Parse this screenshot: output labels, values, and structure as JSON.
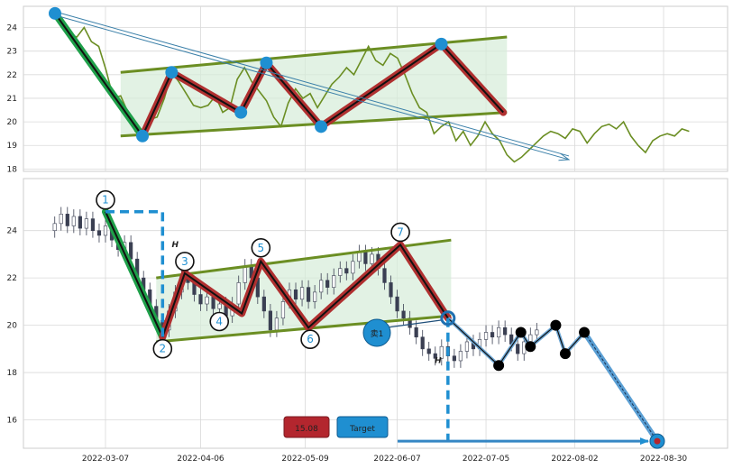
{
  "chart_data": [
    {
      "panel": "top",
      "type": "line",
      "title": "",
      "xlabel": "",
      "ylabel": "",
      "ylim": [
        17.9,
        24.9
      ],
      "grid": true,
      "yticks": [
        18,
        19,
        20,
        21,
        22,
        23,
        24
      ],
      "colors": {
        "price": "#6b8e23",
        "pattern": "#b03030",
        "point": "#1f8fd1",
        "channel": "#6b8e23",
        "leg": "#1fa04a"
      },
      "price_series": [
        {
          "x": 0,
          "y": 24.6
        },
        {
          "x": 2,
          "y": 24.0
        },
        {
          "x": 4,
          "y": 23.7
        },
        {
          "x": 6,
          "y": 23.6
        },
        {
          "x": 8,
          "y": 24.0
        },
        {
          "x": 10,
          "y": 23.4
        },
        {
          "x": 12,
          "y": 23.2
        },
        {
          "x": 14,
          "y": 22.2
        },
        {
          "x": 16,
          "y": 21.0
        },
        {
          "x": 18,
          "y": 21.1
        },
        {
          "x": 20,
          "y": 20.4
        },
        {
          "x": 22,
          "y": 19.6
        },
        {
          "x": 24,
          "y": 19.4
        },
        {
          "x": 26,
          "y": 20.1
        },
        {
          "x": 28,
          "y": 20.2
        },
        {
          "x": 30,
          "y": 21.0
        },
        {
          "x": 32,
          "y": 22.1
        },
        {
          "x": 34,
          "y": 21.7
        },
        {
          "x": 36,
          "y": 21.2
        },
        {
          "x": 38,
          "y": 20.7
        },
        {
          "x": 40,
          "y": 20.6
        },
        {
          "x": 42,
          "y": 20.7
        },
        {
          "x": 44,
          "y": 21.1
        },
        {
          "x": 46,
          "y": 20.4
        },
        {
          "x": 48,
          "y": 20.6
        },
        {
          "x": 50,
          "y": 21.8
        },
        {
          "x": 52,
          "y": 22.3
        },
        {
          "x": 54,
          "y": 21.7
        },
        {
          "x": 56,
          "y": 21.3
        },
        {
          "x": 58,
          "y": 20.9
        },
        {
          "x": 60,
          "y": 20.2
        },
        {
          "x": 62,
          "y": 19.8
        },
        {
          "x": 64,
          "y": 20.8
        },
        {
          "x": 66,
          "y": 21.4
        },
        {
          "x": 68,
          "y": 21.0
        },
        {
          "x": 70,
          "y": 21.2
        },
        {
          "x": 72,
          "y": 20.6
        },
        {
          "x": 74,
          "y": 21.1
        },
        {
          "x": 76,
          "y": 21.6
        },
        {
          "x": 78,
          "y": 21.9
        },
        {
          "x": 80,
          "y": 22.3
        },
        {
          "x": 82,
          "y": 22.0
        },
        {
          "x": 84,
          "y": 22.6
        },
        {
          "x": 86,
          "y": 23.2
        },
        {
          "x": 88,
          "y": 22.6
        },
        {
          "x": 90,
          "y": 22.4
        },
        {
          "x": 92,
          "y": 22.9
        },
        {
          "x": 94,
          "y": 22.7
        },
        {
          "x": 96,
          "y": 22.0
        },
        {
          "x": 98,
          "y": 21.2
        },
        {
          "x": 100,
          "y": 20.6
        },
        {
          "x": 102,
          "y": 20.4
        },
        {
          "x": 104,
          "y": 19.5
        },
        {
          "x": 106,
          "y": 19.8
        },
        {
          "x": 108,
          "y": 20.0
        },
        {
          "x": 110,
          "y": 19.2
        },
        {
          "x": 112,
          "y": 19.6
        },
        {
          "x": 114,
          "y": 19.0
        },
        {
          "x": 116,
          "y": 19.4
        },
        {
          "x": 118,
          "y": 20.0
        },
        {
          "x": 120,
          "y": 19.5
        },
        {
          "x": 122,
          "y": 19.2
        },
        {
          "x": 124,
          "y": 18.6
        },
        {
          "x": 126,
          "y": 18.3
        },
        {
          "x": 128,
          "y": 18.5
        },
        {
          "x": 130,
          "y": 18.8
        },
        {
          "x": 132,
          "y": 19.1
        },
        {
          "x": 134,
          "y": 19.4
        },
        {
          "x": 136,
          "y": 19.6
        },
        {
          "x": 138,
          "y": 19.5
        },
        {
          "x": 140,
          "y": 19.3
        },
        {
          "x": 142,
          "y": 19.7
        },
        {
          "x": 144,
          "y": 19.6
        },
        {
          "x": 146,
          "y": 19.1
        },
        {
          "x": 148,
          "y": 19.5
        },
        {
          "x": 150,
          "y": 19.8
        },
        {
          "x": 152,
          "y": 19.9
        },
        {
          "x": 154,
          "y": 19.7
        },
        {
          "x": 156,
          "y": 20.0
        },
        {
          "x": 158,
          "y": 19.4
        },
        {
          "x": 160,
          "y": 19.0
        },
        {
          "x": 162,
          "y": 18.7
        },
        {
          "x": 164,
          "y": 19.2
        },
        {
          "x": 166,
          "y": 19.4
        },
        {
          "x": 168,
          "y": 19.5
        },
        {
          "x": 170,
          "y": 19.4
        },
        {
          "x": 172,
          "y": 19.7
        },
        {
          "x": 174,
          "y": 19.6
        }
      ],
      "pattern_points": [
        {
          "x": 0,
          "y": 24.6
        },
        {
          "x": 24,
          "y": 19.4
        },
        {
          "x": 32,
          "y": 22.1
        },
        {
          "x": 51,
          "y": 20.4
        },
        {
          "x": 58,
          "y": 22.5
        },
        {
          "x": 73,
          "y": 19.8
        },
        {
          "x": 106,
          "y": 23.3
        },
        {
          "x": 123,
          "y": 20.4
        }
      ],
      "channel_upper": [
        {
          "x": 18,
          "y": 22.1
        },
        {
          "x": 124,
          "y": 23.6
        }
      ],
      "channel_lower": [
        {
          "x": 18,
          "y": 19.4
        },
        {
          "x": 124,
          "y": 20.4
        }
      ],
      "trend_arrow": [
        {
          "x": 0,
          "y": 24.6
        },
        {
          "x": 141,
          "y": 18.4
        }
      ]
    },
    {
      "panel": "bottom",
      "type": "candlestick",
      "title": "",
      "xlabel": "",
      "ylabel": "",
      "ylim": [
        14.8,
        26.2
      ],
      "grid": true,
      "yticks": [
        16,
        18,
        20,
        22,
        24
      ],
      "x_ticks": [
        {
          "day": 0,
          "label": "2022-03-07"
        },
        {
          "day": 30,
          "label": "2022-04-06"
        },
        {
          "day": 63,
          "label": "2022-05-09"
        },
        {
          "day": 92,
          "label": "2022-06-07"
        },
        {
          "day": 120,
          "label": "2022-07-05"
        },
        {
          "day": 148,
          "label": "2022-08-02"
        },
        {
          "day": 176,
          "label": "2022-08-30"
        }
      ],
      "colors": {
        "candle": "#3a3f52",
        "pattern": "#b03030",
        "channel": "#6b8e23",
        "leg": "#1fa04a",
        "target": "#1f8fd1",
        "price_badge": "#b3262e",
        "forecast": "#111111"
      },
      "candles": [
        [
          -16,
          24.0,
          24.3
        ],
        [
          -14,
          24.3,
          24.7
        ],
        [
          -12,
          24.7,
          24.2
        ],
        [
          -10,
          24.2,
          24.6
        ],
        [
          -8,
          24.6,
          24.1
        ],
        [
          -6,
          24.1,
          24.5
        ],
        [
          -4,
          24.5,
          24.0
        ],
        [
          -2,
          24.0,
          23.8
        ],
        [
          0,
          23.8,
          24.2
        ],
        [
          2,
          24.2,
          23.6
        ],
        [
          4,
          23.6,
          23.2
        ],
        [
          6,
          23.2,
          23.5
        ],
        [
          8,
          23.5,
          22.8
        ],
        [
          10,
          22.8,
          22.0
        ],
        [
          12,
          22.0,
          21.5
        ],
        [
          14,
          21.5,
          20.8
        ],
        [
          16,
          20.8,
          20.2
        ],
        [
          18,
          20.2,
          19.8
        ],
        [
          20,
          19.8,
          20.6
        ],
        [
          22,
          20.6,
          21.4
        ],
        [
          24,
          21.4,
          22.1
        ],
        [
          26,
          22.1,
          21.8
        ],
        [
          28,
          21.8,
          21.3
        ],
        [
          30,
          21.3,
          20.9
        ],
        [
          32,
          20.9,
          21.2
        ],
        [
          34,
          21.2,
          20.7
        ],
        [
          36,
          20.7,
          20.9
        ],
        [
          38,
          20.9,
          20.4
        ],
        [
          40,
          20.4,
          20.9
        ],
        [
          42,
          20.9,
          21.8
        ],
        [
          44,
          21.8,
          22.5
        ],
        [
          46,
          22.5,
          22.0
        ],
        [
          48,
          22.0,
          21.2
        ],
        [
          50,
          21.2,
          20.6
        ],
        [
          52,
          20.6,
          19.8
        ],
        [
          54,
          19.8,
          20.3
        ],
        [
          56,
          20.3,
          21.0
        ],
        [
          58,
          21.0,
          21.5
        ],
        [
          60,
          21.5,
          21.1
        ],
        [
          62,
          21.1,
          21.6
        ],
        [
          64,
          21.6,
          21.0
        ],
        [
          66,
          21.0,
          21.4
        ],
        [
          68,
          21.4,
          21.9
        ],
        [
          70,
          21.9,
          21.6
        ],
        [
          72,
          21.6,
          22.1
        ],
        [
          74,
          22.1,
          22.4
        ],
        [
          76,
          22.4,
          22.2
        ],
        [
          78,
          22.2,
          22.7
        ],
        [
          80,
          22.7,
          23.1
        ],
        [
          82,
          23.1,
          22.6
        ],
        [
          84,
          22.6,
          23.0
        ],
        [
          86,
          23.0,
          22.4
        ],
        [
          88,
          22.4,
          21.8
        ],
        [
          90,
          21.8,
          21.2
        ],
        [
          92,
          21.2,
          20.6
        ],
        [
          94,
          20.6,
          20.3
        ],
        [
          96,
          20.3,
          19.9
        ],
        [
          98,
          19.9,
          19.5
        ],
        [
          100,
          19.5,
          19.0
        ],
        [
          102,
          19.0,
          18.8
        ],
        [
          104,
          18.8,
          18.6
        ],
        [
          106,
          18.6,
          19.1
        ],
        [
          108,
          19.1,
          18.7
        ],
        [
          110,
          18.7,
          18.5
        ],
        [
          112,
          18.5,
          18.9
        ],
        [
          114,
          18.9,
          19.3
        ],
        [
          116,
          19.3,
          19.0
        ],
        [
          118,
          19.0,
          19.4
        ],
        [
          120,
          19.4,
          19.7
        ],
        [
          122,
          19.7,
          19.5
        ],
        [
          124,
          19.5,
          19.9
        ],
        [
          126,
          19.9,
          19.6
        ],
        [
          128,
          19.6,
          19.2
        ],
        [
          130,
          19.2,
          18.8
        ],
        [
          132,
          18.8,
          19.3
        ],
        [
          134,
          19.3,
          19.6
        ],
        [
          136,
          19.6,
          19.8
        ]
      ],
      "pattern_points": [
        {
          "label": "1",
          "x": 0,
          "y": 24.8
        },
        {
          "label": "2",
          "x": 18,
          "y": 19.5
        },
        {
          "label": "3",
          "x": 25,
          "y": 22.2
        },
        {
          "label": "4",
          "x": 43,
          "y": 20.5
        },
        {
          "label": "5",
          "x": 49,
          "y": 22.7
        },
        {
          "label": "6",
          "x": 64,
          "y": 19.9
        },
        {
          "label": "7",
          "x": 93,
          "y": 23.4
        },
        {
          "label": "",
          "x": 108,
          "y": 20.3
        }
      ],
      "channel_upper": [
        {
          "x": 16,
          "y": 22.0
        },
        {
          "x": 109,
          "y": 23.6
        }
      ],
      "channel_lower": [
        {
          "x": 16,
          "y": 19.3
        },
        {
          "x": 109,
          "y": 20.4
        }
      ],
      "forecast_path": [
        {
          "x": 108,
          "y": 20.3
        },
        {
          "x": 124,
          "y": 18.3
        },
        {
          "x": 131,
          "y": 19.7
        },
        {
          "x": 134,
          "y": 19.1
        },
        {
          "x": 142,
          "y": 20.0
        },
        {
          "x": 145,
          "y": 18.8
        },
        {
          "x": 151,
          "y": 19.7
        },
        {
          "x": 174,
          "y": 15.1
        }
      ],
      "black_points": [
        {
          "x": 124,
          "y": 18.3
        },
        {
          "x": 131,
          "y": 19.7
        },
        {
          "x": 134,
          "y": 19.1
        },
        {
          "x": 142,
          "y": 20.0
        },
        {
          "x": 145,
          "y": 18.8
        },
        {
          "x": 151,
          "y": 19.7
        }
      ],
      "target": {
        "x": 174,
        "y": 15.1,
        "price_label": "15.08",
        "label": "Target"
      },
      "sell_marker": {
        "label": "卖1",
        "x": 108,
        "y": 20.3
      },
      "H_label": "H",
      "H_top_box": {
        "x_start": 0,
        "x_end": 18,
        "y": 24.8
      },
      "H_bottom": {
        "x": 108,
        "y_top": 20.3,
        "y_bottom": 15.1
      }
    }
  ]
}
